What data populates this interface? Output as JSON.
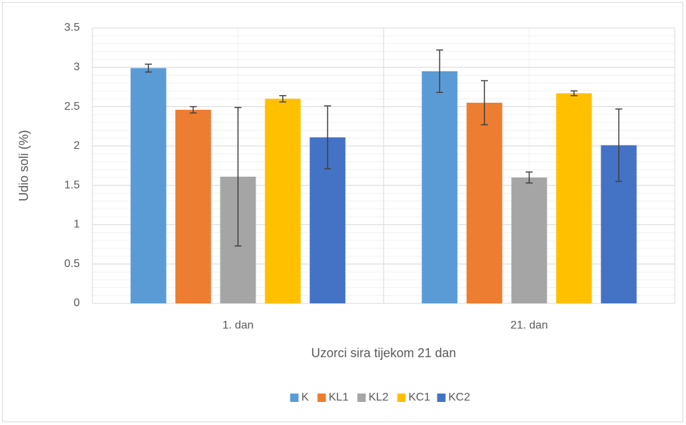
{
  "chart_data": {
    "type": "bar",
    "ylabel": "Udio soli (%)",
    "xlabel": "Uzorci sira tijekom 21 dan",
    "categories": [
      "1. dan",
      "21. dan"
    ],
    "series": [
      {
        "name": "K",
        "color": "#5b9bd5",
        "values": [
          2.99,
          2.95
        ],
        "errors": [
          0.05,
          0.27
        ]
      },
      {
        "name": "KL1",
        "color": "#ed7d31",
        "values": [
          2.46,
          2.55
        ],
        "errors": [
          0.04,
          0.28
        ]
      },
      {
        "name": "KL2",
        "color": "#a5a5a5",
        "values": [
          1.61,
          1.6
        ],
        "errors": [
          0.88,
          0.07
        ]
      },
      {
        "name": "KC1",
        "color": "#ffc000",
        "values": [
          2.6,
          2.67
        ],
        "errors": [
          0.04,
          0.03
        ]
      },
      {
        "name": "KC2",
        "color": "#4472c4",
        "values": [
          2.11,
          2.01
        ],
        "errors": [
          0.4,
          0.46
        ]
      }
    ],
    "ylim": [
      0,
      3.5
    ],
    "yticks": [
      0,
      0.5,
      1,
      1.5,
      2,
      2.5,
      3,
      3.5
    ],
    "grid": true,
    "minor_grid_step": 0.1,
    "legend": "bottom"
  }
}
